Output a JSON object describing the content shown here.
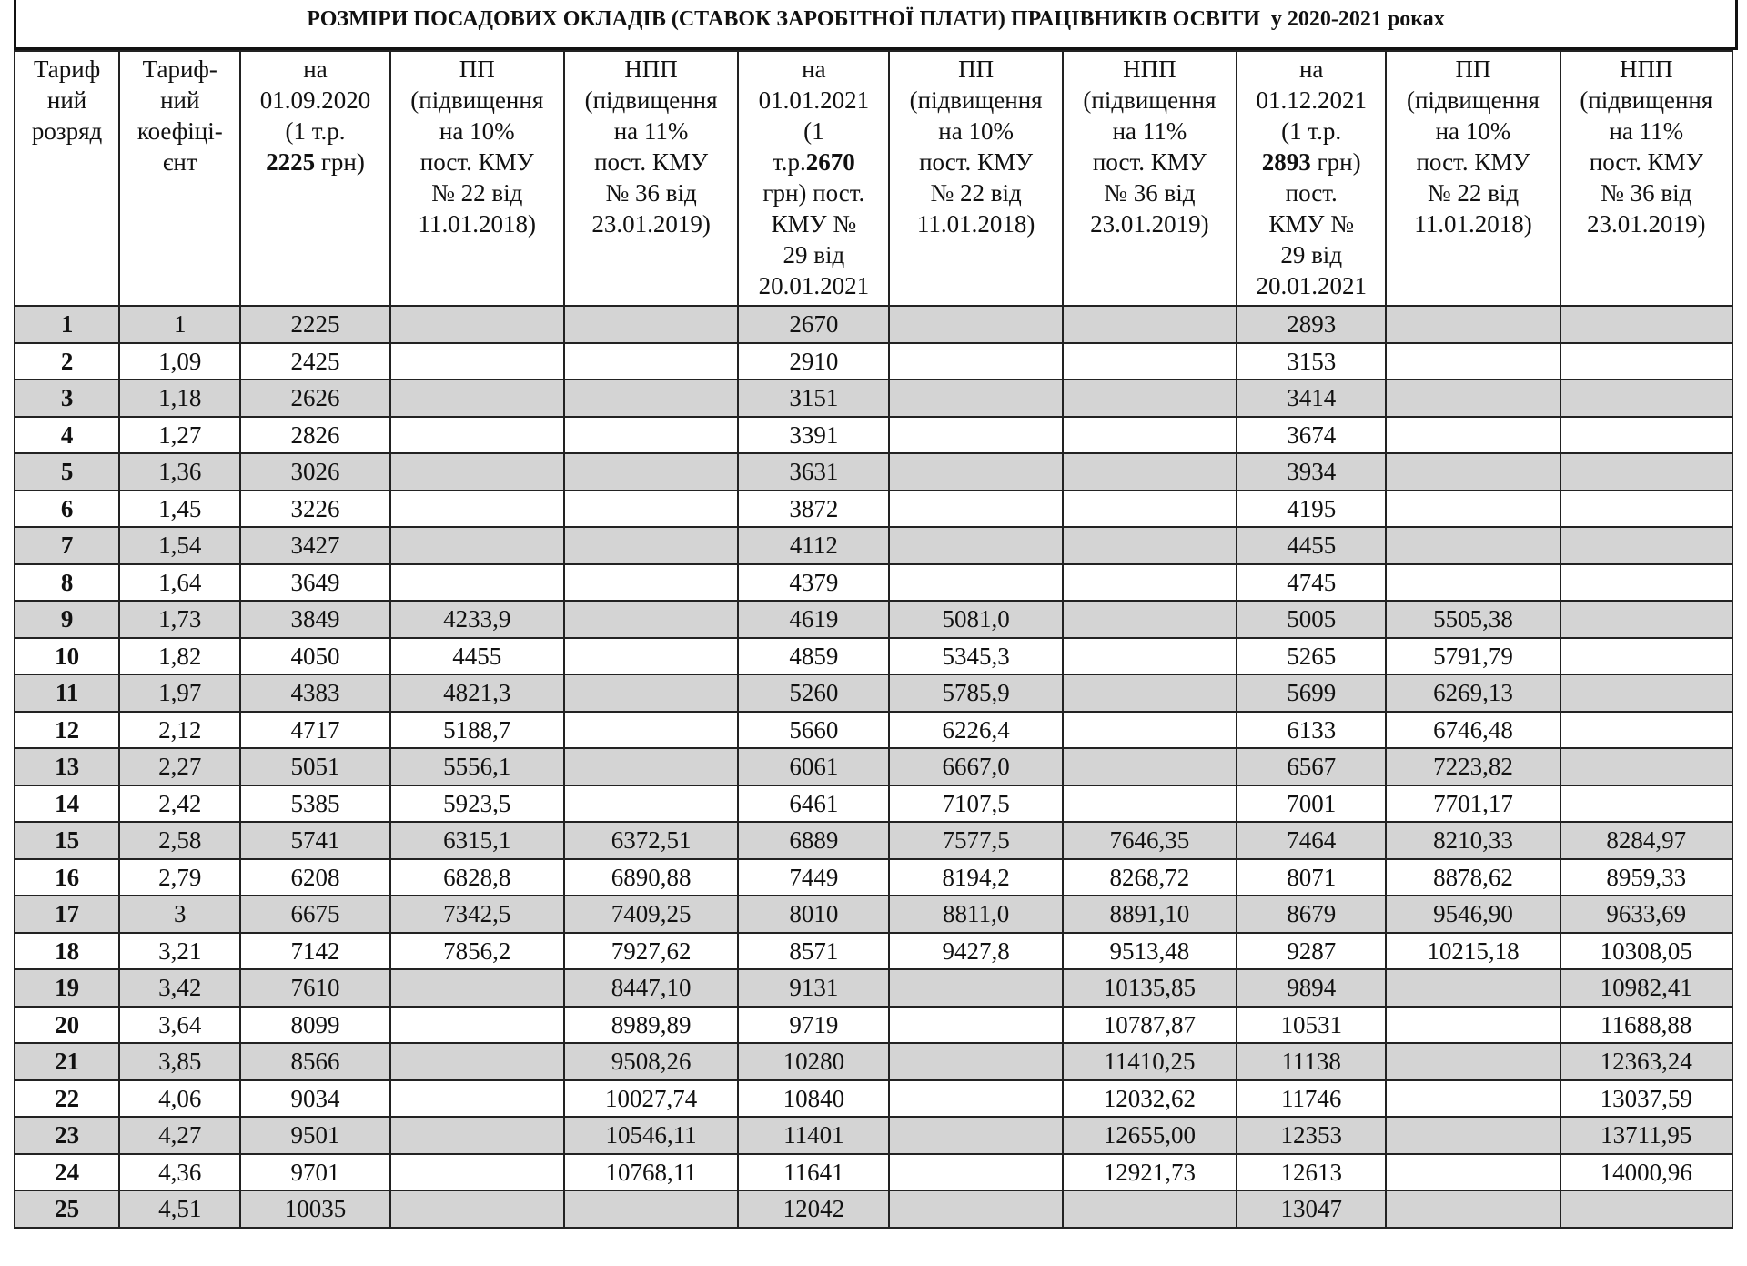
{
  "title": "РОЗМІРИ ПОСАДОВИХ ОКЛАДІВ (СТАВОК ЗАРОБІТНОЇ ПЛАТИ) ПРАЦІВНИКІВ ОСВІТИ  у 2020-2021 роках",
  "header": {
    "columns": [
      [
        "Тариф",
        "ний",
        "розряд"
      ],
      [
        "Тариф-",
        "ний",
        "коефіці-",
        "єнт"
      ],
      [
        "на",
        "01.09.2020",
        "(1 т.р.",
        [
          "2225",
          " грн)"
        ]
      ],
      [
        "ПП",
        "(підвищення",
        "на 10%",
        "пост. КМУ",
        "№ 22 від",
        "11.01.2018)"
      ],
      [
        "НПП",
        "(підвищення",
        "на 11%",
        "пост. КМУ",
        "№ 36 від",
        "23.01.2019)"
      ],
      [
        "на",
        "01.01.2021",
        "(1",
        [
          "т.р.",
          "2670"
        ],
        "грн) пост.",
        "КМУ №",
        "29 від",
        "20.01.2021"
      ],
      [
        "ПП",
        "(підвищення",
        "на 10%",
        "пост. КМУ",
        "№ 22 від",
        "11.01.2018)"
      ],
      [
        "НПП",
        "(підвищення",
        "на 11%",
        "пост. КМУ",
        "№ 36 від",
        "23.01.2019)"
      ],
      [
        "на",
        "01.12.2021",
        "(1 т.р.",
        [
          "2893",
          " грн)"
        ],
        "пост.",
        "КМУ №",
        "29 від",
        "20.01.2021"
      ],
      [
        "ПП",
        "(підвищення",
        "на 10%",
        "пост. КМУ",
        "№ 22 від",
        "11.01.2018)"
      ],
      [
        "НПП",
        "(підвищення",
        "на 11%",
        "пост. КМУ",
        "№ 36 від",
        "23.01.2019)"
      ]
    ]
  },
  "table": {
    "rows": [
      [
        1,
        1,
        2225,
        null,
        null,
        2670,
        null,
        null,
        2893,
        null,
        null
      ],
      [
        2,
        "1,09",
        2425,
        null,
        null,
        2910,
        null,
        null,
        3153,
        null,
        null
      ],
      [
        3,
        "1,18",
        2626,
        null,
        null,
        3151,
        null,
        null,
        3414,
        null,
        null
      ],
      [
        4,
        "1,27",
        2826,
        null,
        null,
        3391,
        null,
        null,
        3674,
        null,
        null
      ],
      [
        5,
        "1,36",
        3026,
        null,
        null,
        3631,
        null,
        null,
        3934,
        null,
        null
      ],
      [
        6,
        "1,45",
        3226,
        null,
        null,
        3872,
        null,
        null,
        4195,
        null,
        null
      ],
      [
        7,
        "1,54",
        3427,
        null,
        null,
        4112,
        null,
        null,
        4455,
        null,
        null
      ],
      [
        8,
        "1,64",
        3649,
        null,
        null,
        4379,
        null,
        null,
        4745,
        null,
        null
      ],
      [
        9,
        "1,73",
        3849,
        "4233,9",
        null,
        4619,
        "5081,0",
        null,
        5005,
        "5505,38",
        null
      ],
      [
        10,
        "1,82",
        4050,
        4455,
        null,
        4859,
        "5345,3",
        null,
        5265,
        "5791,79",
        null
      ],
      [
        11,
        "1,97",
        4383,
        "4821,3",
        null,
        5260,
        "5785,9",
        null,
        5699,
        "6269,13",
        null
      ],
      [
        12,
        "2,12",
        4717,
        "5188,7",
        null,
        5660,
        "6226,4",
        null,
        6133,
        "6746,48",
        null
      ],
      [
        13,
        "2,27",
        5051,
        "5556,1",
        null,
        6061,
        "6667,0",
        null,
        6567,
        "7223,82",
        null
      ],
      [
        14,
        "2,42",
        5385,
        "5923,5",
        null,
        6461,
        "7107,5",
        null,
        7001,
        "7701,17",
        null
      ],
      [
        15,
        "2,58",
        5741,
        "6315,1",
        "6372,51",
        6889,
        "7577,5",
        "7646,35",
        7464,
        "8210,33",
        "8284,97"
      ],
      [
        16,
        "2,79",
        6208,
        "6828,8",
        "6890,88",
        7449,
        "8194,2",
        "8268,72",
        8071,
        "8878,62",
        "8959,33"
      ],
      [
        17,
        3,
        6675,
        "7342,5",
        "7409,25",
        8010,
        "8811,0",
        "8891,10",
        8679,
        "9546,90",
        "9633,69"
      ],
      [
        18,
        "3,21",
        7142,
        "7856,2",
        "7927,62",
        8571,
        "9427,8",
        "9513,48",
        9287,
        "10215,18",
        "10308,05"
      ],
      [
        19,
        "3,42",
        7610,
        null,
        "8447,10",
        9131,
        null,
        "10135,85",
        9894,
        null,
        "10982,41"
      ],
      [
        20,
        "3,64",
        8099,
        null,
        "8989,89",
        9719,
        null,
        "10787,87",
        10531,
        null,
        "11688,88"
      ],
      [
        21,
        "3,85",
        8566,
        null,
        "9508,26",
        10280,
        null,
        "11410,25",
        11138,
        null,
        "12363,24"
      ],
      [
        22,
        "4,06",
        9034,
        null,
        "10027,74",
        10840,
        null,
        "12032,62",
        11746,
        null,
        "13037,59"
      ],
      [
        23,
        "4,27",
        9501,
        null,
        "10546,11",
        11401,
        null,
        "12655,00",
        12353,
        null,
        "13711,95"
      ],
      [
        24,
        "4,36",
        9701,
        null,
        "10768,11",
        11641,
        null,
        "12921,73",
        12613,
        null,
        "14000,96"
      ],
      [
        25,
        "4,51",
        10035,
        null,
        null,
        12042,
        null,
        null,
        13047,
        null,
        null
      ]
    ]
  }
}
